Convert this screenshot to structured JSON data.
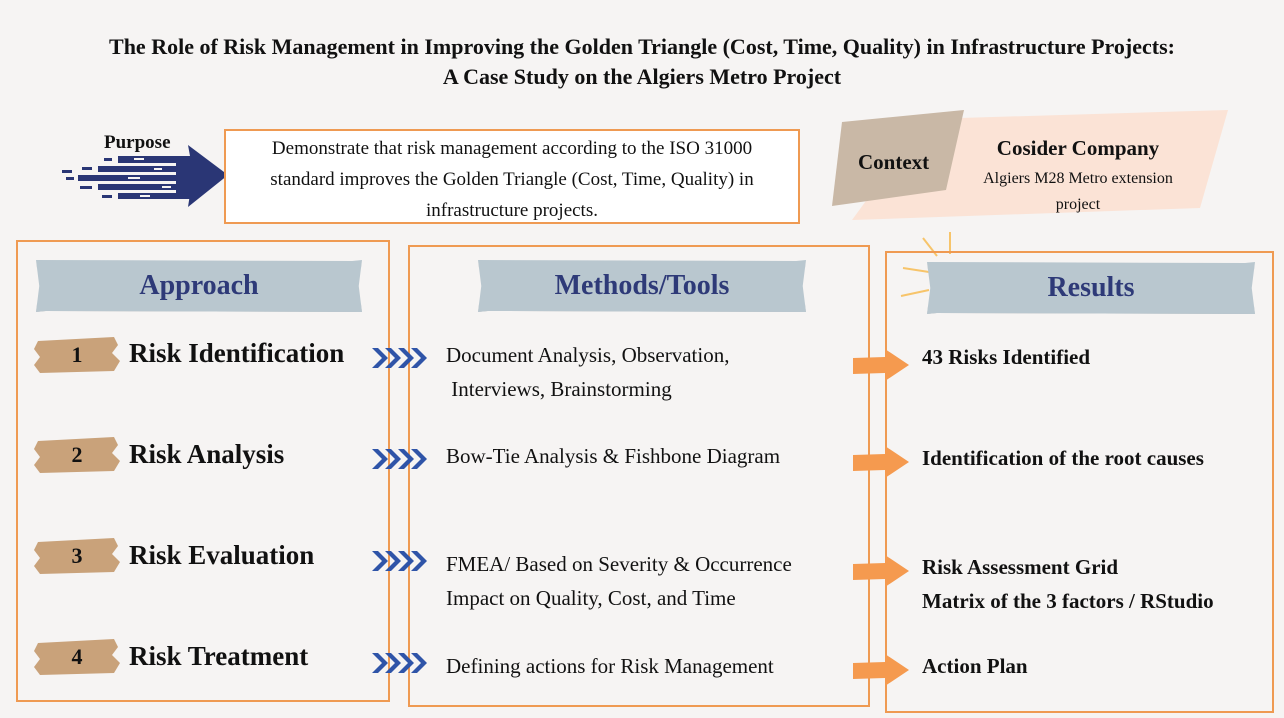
{
  "title": {
    "line1": "The Role of Risk Management in Improving the Golden Triangle (Cost, Time, Quality) in Infrastructure Projects:",
    "line2": "A Case Study on the Algiers Metro Project"
  },
  "purpose": {
    "label": "Purpose",
    "line1": "Demonstrate that risk management according to the ISO 31000",
    "line2": "standard improves the Golden Triangle (Cost, Time, Quality) in",
    "line3": "infrastructure projects."
  },
  "context": {
    "label": "Context",
    "company": "Cosider Company",
    "desc_line1": "Algiers M28 Metro extension",
    "desc_line2": "project"
  },
  "columns": {
    "approach": "Approach",
    "methods": "Methods/Tools",
    "results": "Results"
  },
  "steps": [
    {
      "num": "1",
      "label": "Risk Identification",
      "method_line1": "Document Analysis, Observation,",
      "method_line2": " Interviews, Brainstorming",
      "result_line1": "43 Risks Identified",
      "result_line2": ""
    },
    {
      "num": "2",
      "label": "Risk Analysis",
      "method_line1": "Bow-Tie Analysis & Fishbone Diagram",
      "method_line2": "",
      "result_line1": "Identification of the root causes",
      "result_line2": ""
    },
    {
      "num": "3",
      "label": "Risk Evaluation",
      "method_line1": "FMEA/ Based on Severity & Occurrence",
      "method_line2": "Impact on Quality, Cost, and Time",
      "result_line1": "Risk Assessment Grid",
      "result_line2": "Matrix of the 3 factors / RStudio"
    },
    {
      "num": "4",
      "label": "Risk Treatment",
      "method_line1": "Defining actions for Risk Management",
      "method_line2": "",
      "result_line1": "Action Plan",
      "result_line2": ""
    }
  ],
  "colors": {
    "border_orange": "#ef9a52",
    "banner_gray": "#b9c7cf",
    "heading_navy": "#2e3a78",
    "brush_tan": "#c9a27a",
    "chevron_blue": "#2f54a8",
    "arrow_orange": "#f59a4f"
  }
}
